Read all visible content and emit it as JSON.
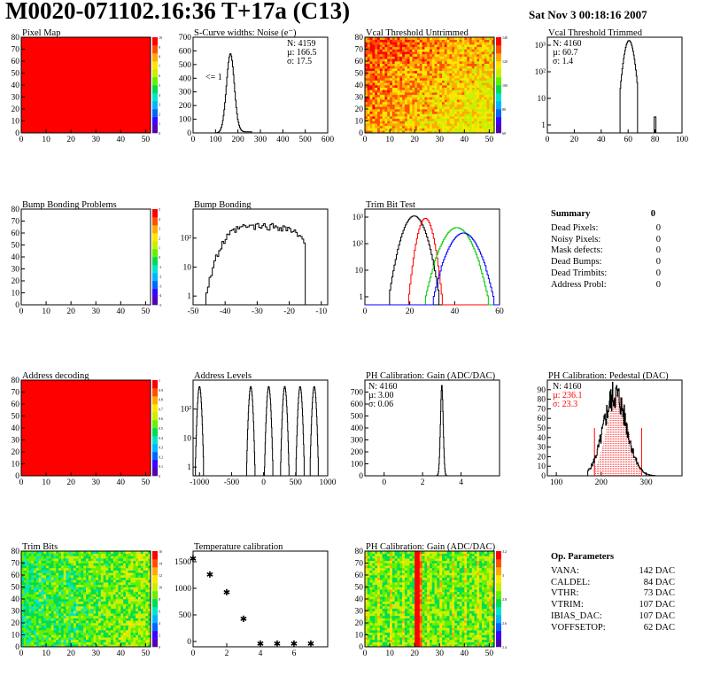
{
  "header": {
    "title": "M0020-071102.16:36 T+17a (C13)",
    "datetime": "Sat Nov  3 00:18:16 2007"
  },
  "summary": {
    "title": "Summary",
    "total": "0",
    "rows": [
      {
        "label": "Dead Pixels:",
        "value": "0"
      },
      {
        "label": "Noisy Pixels:",
        "value": "0"
      },
      {
        "label": "Mask defects:",
        "value": "0"
      },
      {
        "label": "Dead Bumps:",
        "value": "0"
      },
      {
        "label": "Dead Trimbits:",
        "value": "0"
      },
      {
        "label": "Address Probl:",
        "value": "0"
      }
    ]
  },
  "op_params": {
    "title": "Op. Parameters",
    "rows": [
      {
        "label": "VANA:",
        "value": "142 DAC"
      },
      {
        "label": "CALDEL:",
        "value": "84 DAC"
      },
      {
        "label": "VTHR:",
        "value": "73 DAC"
      },
      {
        "label": "VTRIM:",
        "value": "107 DAC"
      },
      {
        "label": "IBIAS_DAC:",
        "value": "107 DAC"
      },
      {
        "label": "VOFFSETOP:",
        "value": "62 DAC"
      }
    ]
  },
  "colors": {
    "red": "#ff0000",
    "green": "#00c800",
    "blue": "#0000ff",
    "black": "#000000"
  },
  "chart_data": [
    {
      "id": "pixel-map",
      "type": "heatmap",
      "title": "Pixel Map",
      "xlim": [
        0,
        52
      ],
      "ylim": [
        0,
        80
      ],
      "xticks": [
        0,
        10,
        20,
        30,
        40,
        50
      ],
      "yticks": [
        0,
        10,
        20,
        30,
        40,
        50,
        60,
        70,
        80
      ],
      "fill": "uniform",
      "fill_color": "#ff0000",
      "z_ticks": [
        "0",
        "1",
        "2",
        "3",
        "4",
        "5",
        "6",
        "7",
        "8",
        "9",
        "10"
      ]
    },
    {
      "id": "scurve",
      "type": "bar",
      "title": "S-Curve widths: Noise (e⁻)",
      "xlim": [
        0,
        600
      ],
      "ylim": [
        0,
        700
      ],
      "xticks": [
        0,
        100,
        200,
        300,
        400,
        500,
        600
      ],
      "yticks": [
        0,
        100,
        200,
        300,
        400,
        500,
        600,
        700
      ],
      "peak": {
        "mean": 166.5,
        "sigma": 17.5,
        "height": 580
      },
      "stats": [
        "N: 4159",
        "µ: 166.5",
        "σ: 17.5"
      ],
      "annotation": "<= 1"
    },
    {
      "id": "vcal-untrimmed",
      "type": "heatmap",
      "title": "Vcal Threshold Untrimmed",
      "xlim": [
        0,
        52
      ],
      "ylim": [
        0,
        80
      ],
      "xticks": [
        0,
        10,
        20,
        30,
        40,
        50
      ],
      "yticks": [
        0,
        10,
        20,
        30,
        40,
        50,
        60,
        70,
        80
      ],
      "fill": "noise-gradient",
      "z_ticks": [
        "60",
        "80",
        "100",
        "120",
        "140"
      ]
    },
    {
      "id": "vcal-trimmed",
      "type": "bar",
      "title": "Vcal Threshold Trimmed",
      "log": true,
      "xlim": [
        0,
        100
      ],
      "ylim": [
        0.5,
        2000
      ],
      "xticks": [
        0,
        20,
        40,
        60,
        80,
        100
      ],
      "ytick_labels": [
        "1",
        "10",
        "10²",
        "10³"
      ],
      "yticks": [
        1,
        10,
        100,
        1000
      ],
      "peak": {
        "mean": 60.7,
        "sigma": 1.4,
        "height": 1500
      },
      "outliers": [
        {
          "x": 80,
          "y": 1
        }
      ],
      "stats": [
        "N: 4160",
        "µ: 60.7",
        "σ:  1.4"
      ]
    },
    {
      "id": "bump-problems",
      "type": "heatmap",
      "title": "Bump Bonding Problems",
      "xlim": [
        0,
        52
      ],
      "ylim": [
        0,
        80
      ],
      "xticks": [
        0,
        10,
        20,
        30,
        40,
        50
      ],
      "yticks": [
        0,
        10,
        20,
        30,
        40,
        50,
        60,
        70,
        80
      ],
      "fill": "empty",
      "z_ticks": [
        "-5",
        "-4",
        "-3",
        "-2",
        "-1",
        "0",
        "1",
        "2",
        "3",
        "4",
        "5"
      ]
    },
    {
      "id": "bump-bonding",
      "type": "bar",
      "title": "Bump Bonding",
      "log": true,
      "xlim": [
        -50,
        -8
      ],
      "ylim": [
        0.5,
        1000
      ],
      "xticks": [
        -50,
        -40,
        -30,
        -20,
        -10
      ],
      "yticks": [
        1,
        10,
        100
      ],
      "ytick_labels": [
        "1",
        "10",
        "10²"
      ],
      "shape": "broad",
      "center": -28,
      "width": 9,
      "height": 300
    },
    {
      "id": "trim-bit-test",
      "type": "line",
      "title": "Trim Bit Test",
      "log": true,
      "xlim": [
        0,
        60
      ],
      "ylim": [
        0.5,
        2000
      ],
      "xticks": [
        0,
        20,
        40,
        60
      ],
      "yticks": [
        1,
        10,
        100,
        1000
      ],
      "ytick_labels": [
        "1",
        "10",
        "10²",
        "10³"
      ],
      "series": [
        {
          "name": "",
          "color": "#000000",
          "center": 22,
          "width": 3,
          "height": 1100
        },
        {
          "name": "",
          "color": "#ff0000",
          "center": 27,
          "width": 2,
          "height": 900
        },
        {
          "name": "",
          "color": "#00c800",
          "center": 41,
          "width": 4,
          "height": 400
        },
        {
          "name": "",
          "color": "#0000ff",
          "center": 44,
          "width": 4,
          "height": 250
        }
      ]
    },
    {
      "id": "address-decoding",
      "type": "heatmap",
      "title": "Address decoding",
      "xlim": [
        0,
        52
      ],
      "ylim": [
        0,
        80
      ],
      "xticks": [
        0,
        10,
        20,
        30,
        40,
        50
      ],
      "yticks": [
        0,
        10,
        20,
        30,
        40,
        50,
        60,
        70,
        80
      ],
      "fill": "uniform",
      "fill_color": "#ff0000",
      "z_ticks": [
        "0",
        "0.1",
        "0.2",
        "0.3",
        "0.4",
        "0.5",
        "0.6",
        "0.7",
        "0.8",
        "0.9",
        "1"
      ]
    },
    {
      "id": "address-levels",
      "type": "bar",
      "title": "Address Levels",
      "log": true,
      "xlim": [
        -1100,
        1000
      ],
      "ylim": [
        0.5,
        1000
      ],
      "xticks": [
        -1000,
        -500,
        0,
        500,
        1000
      ],
      "yticks": [
        1,
        10,
        100
      ],
      "ytick_labels": [
        "1",
        "10",
        "10²"
      ],
      "peaks": [
        -1000,
        -200,
        80,
        330,
        570,
        790
      ],
      "height": 600
    },
    {
      "id": "ph-gain",
      "type": "bar",
      "title": "PH Calibration: Gain (ADC/DAC)",
      "xlim": [
        -1,
        6
      ],
      "ylim": [
        0,
        800
      ],
      "xticks": [
        0,
        2,
        4
      ],
      "yticks": [
        0,
        100,
        200,
        300,
        400,
        500,
        600,
        700
      ],
      "peak": {
        "mean": 3.0,
        "sigma": 0.06,
        "height": 760
      },
      "stats": [
        "N: 4160",
        "µ: 3.00",
        "σ: 0.06"
      ]
    },
    {
      "id": "ph-pedestal",
      "type": "bar",
      "title": "PH Calibration: Pedestal (DAC)",
      "xlim": [
        80,
        380
      ],
      "ylim": [
        0,
        100
      ],
      "xticks": [
        100,
        200,
        300
      ],
      "yticks": [
        0,
        10,
        20,
        30,
        40,
        50,
        60,
        70,
        80,
        90
      ],
      "peak": {
        "mean": 236.1,
        "sigma": 23.3,
        "height": 85
      },
      "fit_range": [
        185,
        290
      ],
      "stats": [
        "N: 4160",
        "µ: 236.1",
        "σ: 23.3"
      ]
    },
    {
      "id": "trim-bits",
      "type": "heatmap",
      "title": "Trim Bits",
      "xlim": [
        0,
        52
      ],
      "ylim": [
        0,
        80
      ],
      "xticks": [
        0,
        10,
        20,
        30,
        40,
        50
      ],
      "yticks": [
        0,
        10,
        20,
        30,
        40,
        50,
        60,
        70,
        80
      ],
      "fill": "noise-green",
      "z_ticks": [
        "0",
        "2",
        "4",
        "6",
        "8",
        "10",
        "12",
        "14",
        "16"
      ]
    },
    {
      "id": "temp-calibration",
      "type": "scatter",
      "title": "Temperature calibration",
      "xlim": [
        0,
        8
      ],
      "ylim": [
        -100,
        1700
      ],
      "xticks": [
        0,
        2,
        4,
        6
      ],
      "yticks": [
        0,
        500,
        1000,
        1500
      ],
      "x": [
        0,
        1,
        2,
        3,
        4,
        5,
        6,
        7
      ],
      "y": [
        1580,
        1280,
        950,
        450,
        -20,
        -20,
        -20,
        -20
      ]
    },
    {
      "id": "ph-gain-map",
      "type": "heatmap",
      "title": "PH Calibration: Gain (ADC/DAC)",
      "xlim": [
        0,
        52
      ],
      "ylim": [
        0,
        80
      ],
      "xticks": [
        0,
        10,
        20,
        30,
        40,
        50
      ],
      "yticks": [
        0,
        10,
        20,
        30,
        40,
        50,
        60,
        70,
        80
      ],
      "fill": "column-stripes",
      "z_ticks": [
        "2.4",
        "2.6",
        "2.8",
        "3",
        "3.2"
      ]
    }
  ]
}
